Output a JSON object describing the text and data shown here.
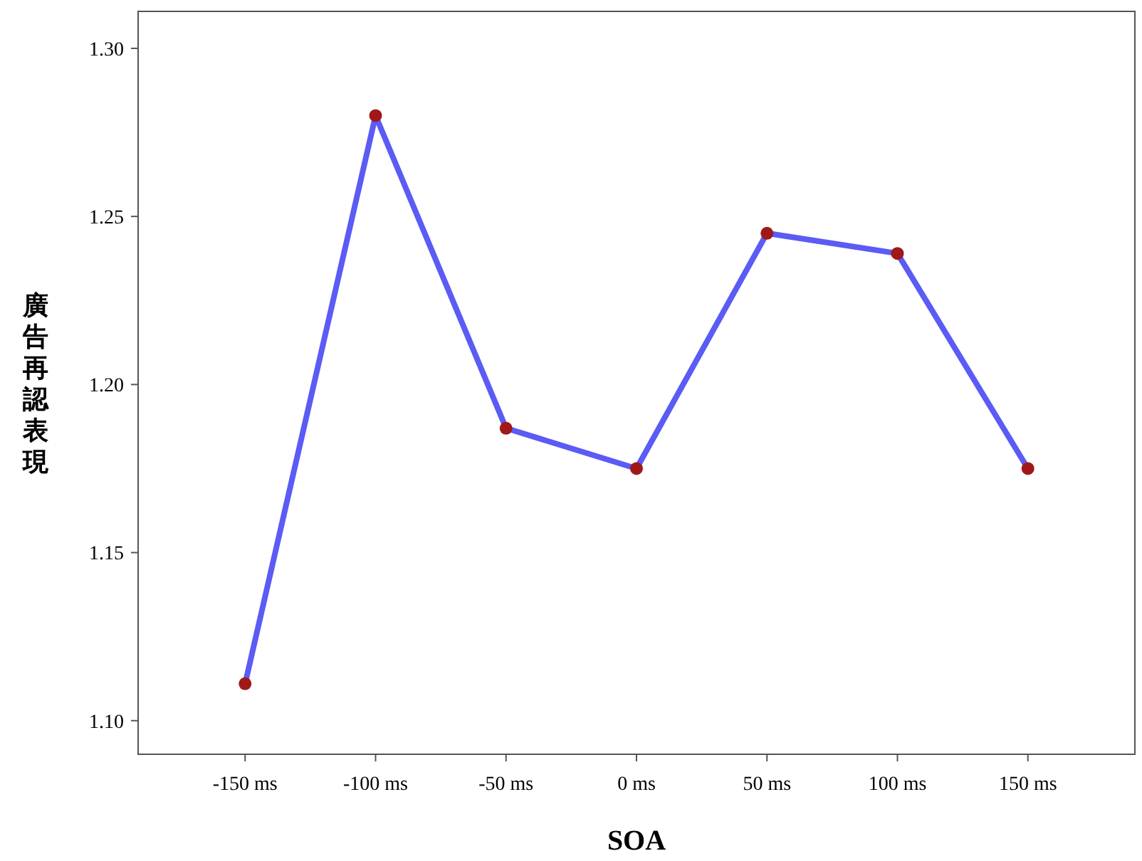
{
  "chart_data": {
    "type": "line",
    "xlabel": "SOA",
    "ylabel": "廣告再認表現",
    "categories": [
      "-150 ms",
      "-100 ms",
      "-50 ms",
      "0 ms",
      "50 ms",
      "100 ms",
      "150 ms"
    ],
    "series": [
      {
        "color": "#5b5bf5",
        "values": [
          1.111,
          1.28,
          1.187,
          1.175,
          1.245,
          1.239,
          1.175
        ]
      }
    ],
    "ylim": [
      1.09,
      1.311
    ],
    "yticks": [
      {
        "value": 1.1,
        "label": "1.10"
      },
      {
        "value": 1.15,
        "label": "1.15"
      },
      {
        "value": 1.2,
        "label": "1.20"
      },
      1.25,
      {
        "value": 1.3,
        "label": "1.30"
      }
    ],
    "marker": "circle"
  }
}
